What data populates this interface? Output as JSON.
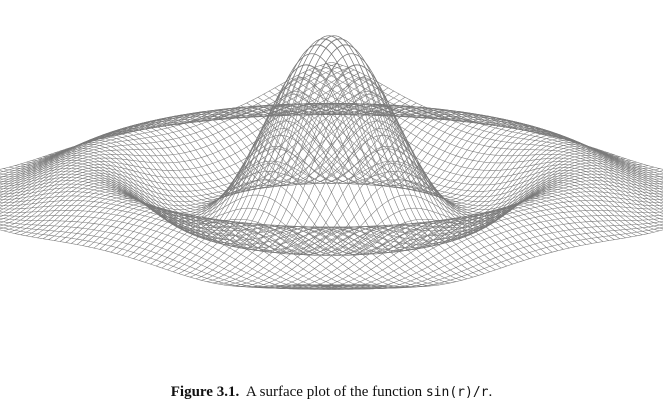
{
  "figure": {
    "label": "Figure 3.1.",
    "caption_text": "A surface plot of the function",
    "caption_code": "sin(r)/r",
    "caption_end": "."
  },
  "chart_data": {
    "type": "surface",
    "function": "sin(r)/r",
    "title": "",
    "xlabel": "",
    "ylabel": "",
    "zlabel": "",
    "x_range": [
      -10,
      10
    ],
    "y_range": [
      -10,
      10
    ],
    "grid_lines_per_axis": 80,
    "grid": false,
    "axes_visible": false,
    "legend": "none",
    "mesh_color": "#7a7a7a"
  }
}
